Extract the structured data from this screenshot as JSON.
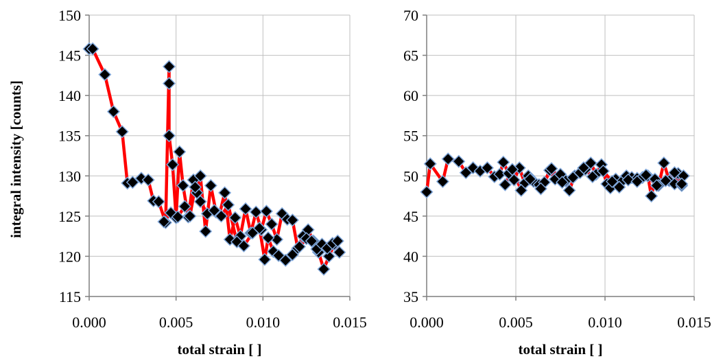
{
  "chart_data": [
    {
      "type": "line",
      "title": "",
      "xlabel": "total strain [ ]",
      "ylabel": "integral intensity [counts]",
      "xlim": [
        0,
        0.015
      ],
      "ylim": [
        115,
        150
      ],
      "xticks": [
        "0.000",
        "0.005",
        "0.010",
        "0.015"
      ],
      "yticks": [
        "115",
        "120",
        "125",
        "130",
        "135",
        "140",
        "145",
        "150"
      ],
      "grid": true,
      "line_color": "#ff0000",
      "marker": "diamond",
      "marker_color": "#000000",
      "marker_edge_color": "#7fa6d9",
      "series": [
        {
          "x": [
            0.0,
            0.0002,
            0.0009,
            0.0014,
            0.0019,
            0.0022,
            0.0025,
            0.003,
            0.0034,
            0.0037,
            0.004,
            0.0044,
            0.0046,
            0.0046,
            0.0046,
            0.0048,
            0.005,
            0.0052,
            0.0054,
            0.0057,
            0.006,
            0.0062,
            0.0064,
            0.0067,
            0.007,
            0.0073,
            0.0075,
            0.0078,
            0.0081,
            0.0084,
            0.0087,
            0.009,
            0.0093,
            0.0096,
            0.0099,
            0.0102,
            0.0105,
            0.0108,
            0.0111,
            0.0114,
            0.0117,
            0.012,
            0.0123,
            0.0126,
            0.0129,
            0.0132,
            0.0135,
            0.0138,
            0.0141,
            0.0144
          ],
          "y": [
            145.8,
            145.8,
            142.6,
            138.0,
            135.5,
            129.1,
            129.2,
            129.7,
            129.5,
            126.9,
            126.8,
            124.2,
            143.6,
            141.5,
            135.0,
            131.4,
            124.8,
            133.0,
            128.8,
            124.9,
            129.5,
            127.9,
            130.0,
            123.1,
            128.8,
            125.5,
            125.2,
            127.9,
            122.1,
            124.8,
            122.5,
            125.9,
            122.9,
            125.5,
            123.3,
            125.6,
            124.0,
            122.1,
            125.3,
            124.6,
            124.5,
            121.0,
            122.5,
            123.3,
            121.9,
            120.5,
            118.4,
            120.0,
            121.5,
            120.5
          ]
        },
        {
          "x": [
            0.0043,
            0.0047,
            0.0051,
            0.0055,
            0.0058,
            0.0061,
            0.0064,
            0.0068,
            0.0072,
            0.0076,
            0.008,
            0.0085,
            0.0089,
            0.0094,
            0.0098,
            0.0101,
            0.0103,
            0.0106,
            0.0109,
            0.0113,
            0.0117,
            0.0121,
            0.0125,
            0.0128,
            0.0131,
            0.0134,
            0.0137,
            0.014,
            0.0143
          ],
          "y": [
            124.3,
            125.4,
            124.9,
            126.2,
            125.0,
            128.6,
            126.8,
            125.3,
            125.7,
            125.0,
            126.4,
            121.8,
            121.3,
            122.9,
            123.5,
            119.6,
            122.3,
            120.6,
            120.1,
            119.5,
            120.2,
            121.2,
            122.2,
            121.9,
            120.9,
            121.5,
            121.0,
            121.6,
            121.9
          ]
        }
      ]
    },
    {
      "type": "line",
      "title": "",
      "xlabel": "total strain [ ]",
      "ylabel": "",
      "xlim": [
        0,
        0.015
      ],
      "ylim": [
        35,
        70
      ],
      "xticks": [
        "0.000",
        "0.005",
        "0.010",
        "0.015"
      ],
      "yticks": [
        "35",
        "40",
        "45",
        "50",
        "55",
        "60",
        "65",
        "70"
      ],
      "grid": true,
      "line_color": "#ff0000",
      "marker": "diamond",
      "marker_color": "#000000",
      "marker_edge_color": "#7fa6d9",
      "series": [
        {
          "x": [
            0.0,
            0.0002,
            0.0009,
            0.0012,
            0.0018,
            0.0022,
            0.0026,
            0.003,
            0.0034,
            0.0038,
            0.0041,
            0.0043,
            0.0046,
            0.0049,
            0.0052,
            0.0055,
            0.0057,
            0.006,
            0.0063,
            0.0066,
            0.0069,
            0.0072,
            0.0075,
            0.0078,
            0.008,
            0.0083,
            0.0086,
            0.0089,
            0.0092,
            0.0095,
            0.0098,
            0.0101,
            0.0103,
            0.0106,
            0.0109,
            0.0112,
            0.0115,
            0.0118,
            0.0121,
            0.0124,
            0.0126,
            0.0128,
            0.013,
            0.0133,
            0.0136,
            0.0139,
            0.0141,
            0.0143,
            0.0144
          ],
          "y": [
            48.0,
            51.5,
            49.3,
            52.1,
            51.8,
            50.4,
            51.0,
            50.6,
            51.0,
            49.9,
            50.2,
            51.7,
            50.3,
            49.5,
            51.0,
            49.1,
            50.0,
            49.3,
            48.9,
            49.2,
            50.7,
            49.6,
            50.2,
            49.4,
            48.2,
            50.0,
            50.4,
            50.8,
            51.6,
            50.2,
            51.4,
            49.0,
            48.5,
            49.6,
            49.2,
            50.0,
            49.8,
            49.7,
            49.8,
            50.0,
            47.5,
            49.6,
            48.8,
            51.6,
            49.4,
            49.0,
            50.3,
            48.8,
            50.0
          ]
        },
        {
          "x": [
            0.0044,
            0.0048,
            0.0053,
            0.0058,
            0.0064,
            0.007,
            0.0076,
            0.0082,
            0.0088,
            0.0093,
            0.0099,
            0.0104,
            0.0108,
            0.0113,
            0.0118,
            0.0123,
            0.0129,
            0.0134,
            0.0139,
            0.0143
          ],
          "y": [
            48.9,
            50.8,
            48.2,
            49.6,
            48.4,
            50.9,
            49.2,
            49.8,
            51.0,
            49.9,
            50.6,
            49.3,
            48.6,
            49.5,
            49.3,
            50.1,
            48.8,
            49.4,
            50.4,
            49.0
          ]
        }
      ]
    }
  ]
}
